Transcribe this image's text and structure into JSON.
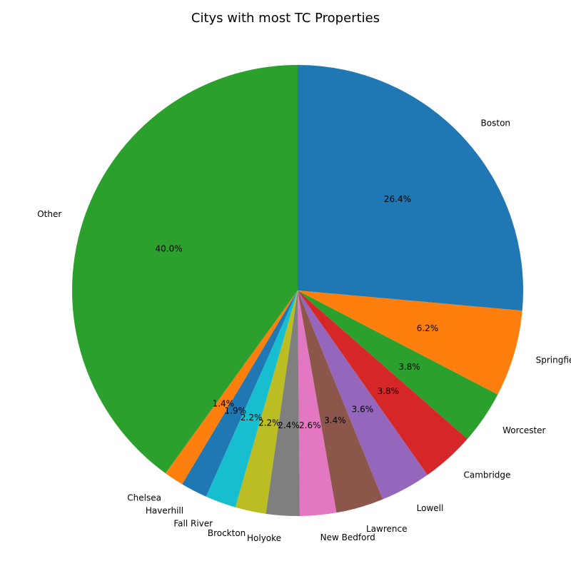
{
  "chart_data": {
    "type": "pie",
    "title": "Citys with most TC Properties",
    "start_angle_deg": 90,
    "direction": "clockwise",
    "slices": [
      {
        "label": "Boston",
        "value": 26.4,
        "pct_text": "26.4%",
        "color": "#1f77b4"
      },
      {
        "label": "Springfield",
        "value": 6.2,
        "pct_text": "6.2%",
        "color": "#ff7f0e"
      },
      {
        "label": "Worcester",
        "value": 3.8,
        "pct_text": "3.8%",
        "color": "#2ca02c"
      },
      {
        "label": "Cambridge",
        "value": 3.8,
        "pct_text": "3.8%",
        "color": "#d62728"
      },
      {
        "label": "Lowell",
        "value": 3.6,
        "pct_text": "3.6%",
        "color": "#9467bd"
      },
      {
        "label": "Lawrence",
        "value": 3.4,
        "pct_text": "3.4%",
        "color": "#8c564b"
      },
      {
        "label": "New Bedford",
        "value": 2.6,
        "pct_text": "2.6%",
        "color": "#e377c2"
      },
      {
        "label": "Holyoke",
        "value": 2.4,
        "pct_text": "2.4%",
        "color": "#7f7f7f"
      },
      {
        "label": "Brockton",
        "value": 2.2,
        "pct_text": "2.2%",
        "color": "#bcbd22"
      },
      {
        "label": "Fall River",
        "value": 2.2,
        "pct_text": "2.2%",
        "color": "#17becf"
      },
      {
        "label": "Haverhill",
        "value": 1.9,
        "pct_text": "1.9%",
        "color": "#1f77b4"
      },
      {
        "label": "Chelsea",
        "value": 1.4,
        "pct_text": "1.4%",
        "color": "#ff7f0e"
      },
      {
        "label": "Other",
        "value": 40.0,
        "pct_text": "40.0%",
        "color": "#2ca02c"
      }
    ]
  }
}
